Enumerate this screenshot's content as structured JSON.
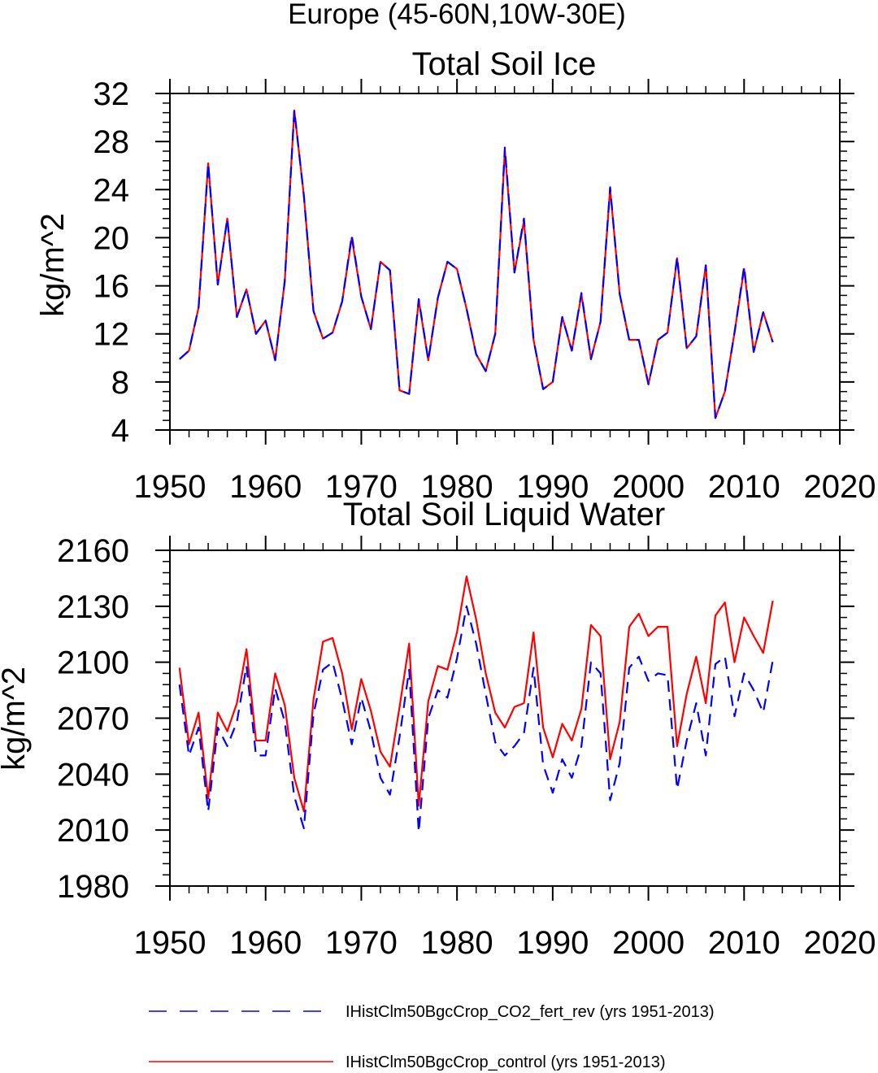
{
  "page_title": "Europe (45-60N,10W-30E)",
  "legend": {
    "items": [
      {
        "label": "IHistClm50BgcCrop_CO2_fert_rev (yrs 1951-2013)",
        "color": "#0000ff",
        "style": "dashed"
      },
      {
        "label": "IHistClm50BgcCrop_control (yrs 1951-2013)",
        "color": "#ff0000",
        "style": "solid"
      }
    ]
  },
  "chart_data": [
    {
      "type": "line",
      "title": "Total Soil Ice",
      "ylabel": "kg/m^2",
      "xlabel": "",
      "xlim": [
        1950,
        2020
      ],
      "ylim": [
        4,
        32
      ],
      "xticks": [
        1950,
        1960,
        1970,
        1980,
        1990,
        2000,
        2010,
        2020
      ],
      "yticks": [
        4,
        8,
        12,
        16,
        20,
        24,
        28,
        32
      ],
      "x": [
        1951,
        1952,
        1953,
        1954,
        1955,
        1956,
        1957,
        1958,
        1959,
        1960,
        1961,
        1962,
        1963,
        1964,
        1965,
        1966,
        1967,
        1968,
        1969,
        1970,
        1971,
        1972,
        1973,
        1974,
        1975,
        1976,
        1977,
        1978,
        1979,
        1980,
        1981,
        1982,
        1983,
        1984,
        1985,
        1986,
        1987,
        1988,
        1989,
        1990,
        1991,
        1992,
        1993,
        1994,
        1995,
        1996,
        1997,
        1998,
        1999,
        2000,
        2001,
        2002,
        2003,
        2004,
        2005,
        2006,
        2007,
        2008,
        2009,
        2010,
        2011,
        2012,
        2013
      ],
      "series": [
        {
          "name": "IHistClm50BgcCrop_CO2_fert_rev (yrs 1951-2013)",
          "color": "#0000ff",
          "style": "dashed",
          "values": [
            9.9,
            10.6,
            14.2,
            26.2,
            16.1,
            21.6,
            13.4,
            15.7,
            12.0,
            13.1,
            9.8,
            16.4,
            30.6,
            23.5,
            13.9,
            11.6,
            12.1,
            14.7,
            20.2,
            15.1,
            12.4,
            18.0,
            17.3,
            7.3,
            7.0,
            14.9,
            9.8,
            15.0,
            18.0,
            17.4,
            14.1,
            10.3,
            8.9,
            12.0,
            27.5,
            17.1,
            21.6,
            11.5,
            7.4,
            8.0,
            13.4,
            10.6,
            15.4,
            9.9,
            13.0,
            24.2,
            15.3,
            11.5,
            11.5,
            7.8,
            11.5,
            12.1,
            18.4,
            10.8,
            11.8,
            17.7,
            5.0,
            7.2,
            12.1,
            17.6,
            10.5,
            13.8,
            11.3
          ]
        },
        {
          "name": "IHistClm50BgcCrop_control (yrs 1951-2013)",
          "color": "#ff0000",
          "style": "solid",
          "values": [
            9.9,
            10.6,
            14.2,
            26.2,
            16.1,
            21.6,
            13.4,
            15.7,
            12.0,
            13.1,
            9.8,
            16.4,
            30.6,
            23.5,
            13.9,
            11.6,
            12.1,
            14.7,
            20.0,
            15.1,
            12.4,
            18.0,
            17.3,
            7.3,
            7.0,
            14.8,
            9.8,
            15.0,
            18.0,
            17.4,
            14.1,
            10.3,
            8.9,
            12.0,
            27.3,
            17.1,
            21.4,
            11.5,
            7.4,
            8.0,
            13.4,
            10.6,
            15.3,
            9.9,
            13.0,
            24.1,
            15.3,
            11.5,
            11.5,
            7.8,
            11.5,
            12.1,
            18.3,
            10.8,
            11.8,
            17.7,
            5.0,
            7.2,
            12.1,
            17.4,
            10.5,
            13.8,
            11.3
          ]
        }
      ]
    },
    {
      "type": "line",
      "title": "Total Soil Liquid Water",
      "ylabel": "kg/m^2",
      "xlabel": "",
      "xlim": [
        1950,
        2020
      ],
      "ylim": [
        1980,
        2160
      ],
      "xticks": [
        1950,
        1960,
        1970,
        1980,
        1990,
        2000,
        2010,
        2020
      ],
      "yticks": [
        1980,
        2010,
        2040,
        2070,
        2100,
        2130,
        2160
      ],
      "x": [
        1951,
        1952,
        1953,
        1954,
        1955,
        1956,
        1957,
        1958,
        1959,
        1960,
        1961,
        1962,
        1963,
        1964,
        1965,
        1966,
        1967,
        1968,
        1969,
        1970,
        1971,
        1972,
        1973,
        1974,
        1975,
        1976,
        1977,
        1978,
        1979,
        1980,
        1981,
        1982,
        1983,
        1984,
        1985,
        1986,
        1987,
        1988,
        1989,
        1990,
        1991,
        1992,
        1993,
        1994,
        1995,
        1996,
        1997,
        1998,
        1999,
        2000,
        2001,
        2002,
        2003,
        2004,
        2005,
        2006,
        2007,
        2008,
        2009,
        2010,
        2011,
        2012,
        2013
      ],
      "series": [
        {
          "name": "IHistClm50BgcCrop_CO2_fert_rev (yrs 1951-2013)",
          "color": "#0000ff",
          "style": "dashed",
          "values": [
            2088,
            2050,
            2065,
            2020,
            2065,
            2055,
            2068,
            2098,
            2050,
            2050,
            2086,
            2068,
            2028,
            2011,
            2072,
            2096,
            2100,
            2080,
            2056,
            2081,
            2063,
            2038,
            2029,
            2060,
            2096,
            2009,
            2070,
            2085,
            2081,
            2102,
            2130,
            2110,
            2083,
            2057,
            2050,
            2055,
            2062,
            2097,
            2045,
            2030,
            2048,
            2038,
            2055,
            2100,
            2094,
            2026,
            2046,
            2097,
            2103,
            2090,
            2094,
            2093,
            2032,
            2058,
            2078,
            2050,
            2099,
            2103,
            2071,
            2094,
            2085,
            2073,
            2101
          ]
        },
        {
          "name": "IHistClm50BgcCrop_control (yrs 1951-2013)",
          "color": "#ff0000",
          "style": "solid",
          "values": [
            2097,
            2056,
            2073,
            2027,
            2073,
            2063,
            2078,
            2107,
            2058,
            2058,
            2094,
            2077,
            2038,
            2020,
            2080,
            2111,
            2113,
            2094,
            2064,
            2091,
            2074,
            2052,
            2044,
            2076,
            2110,
            2023,
            2079,
            2098,
            2096,
            2116,
            2146,
            2123,
            2094,
            2073,
            2065,
            2076,
            2078,
            2116,
            2065,
            2049,
            2067,
            2058,
            2075,
            2120,
            2114,
            2048,
            2068,
            2119,
            2126,
            2114,
            2119,
            2119,
            2055,
            2083,
            2103,
            2078,
            2125,
            2132,
            2100,
            2124,
            2114,
            2105,
            2133
          ]
        }
      ]
    }
  ]
}
